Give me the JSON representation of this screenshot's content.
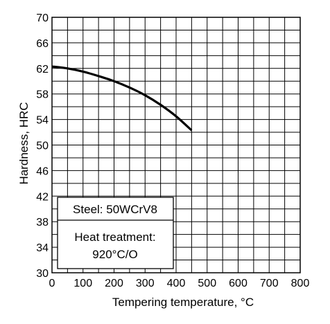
{
  "chart_data": {
    "type": "line",
    "xlabel": "Tempering temperature, °C",
    "ylabel": "Hardness, HRC",
    "xlim": [
      0,
      800
    ],
    "ylim": [
      30,
      70
    ],
    "xticks": [
      0,
      100,
      200,
      300,
      400,
      500,
      600,
      700,
      800
    ],
    "yticks": [
      30,
      34,
      38,
      42,
      46,
      50,
      54,
      58,
      62,
      66,
      70
    ],
    "grid": true,
    "series": [
      {
        "x": [
          0,
          50,
          100,
          150,
          200,
          250,
          300,
          350,
          400,
          450
        ],
        "y": [
          62.3,
          62.0,
          61.5,
          60.8,
          60.0,
          59.0,
          57.8,
          56.3,
          54.5,
          52.3
        ],
        "color": "#000000"
      }
    ],
    "annotations": {
      "steel": "Steel: 50WCrV8",
      "heat_line1": "Heat treatment:",
      "heat_line2": "920°C/O"
    }
  }
}
